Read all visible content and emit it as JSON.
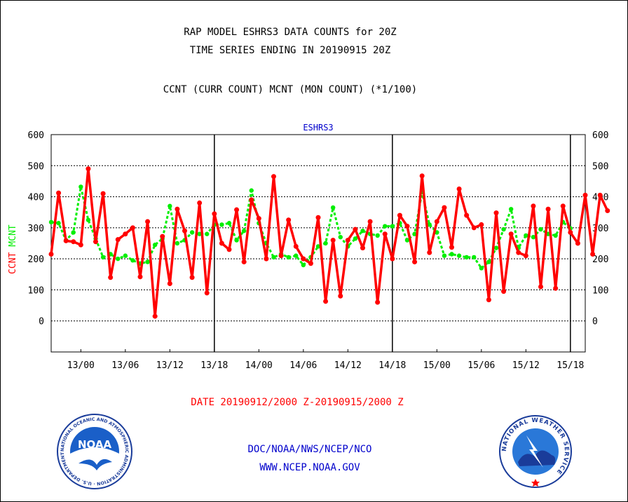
{
  "header": {
    "title_line1": "RAP MODEL ESHRS3 DATA COUNTS for 20Z",
    "title_line2": "TIME SERIES ENDING IN 20190915 20Z",
    "subtitle": "CCNT (CURR COUNT) MCNT (MON COUNT) (*1/100)"
  },
  "footer": {
    "date_range": "DATE 20190912/2000 Z-20190915/2000 Z",
    "credit_line1": "DOC/NOAA/NWS/NCEP/NCO",
    "credit_line2": "WWW.NCEP.NOAA.GOV"
  },
  "logos": {
    "noaa": {
      "center_text": "NOAA",
      "ring_text": "NATIONAL OCEANIC AND ATMOSPHERIC ADMINISTRATION · U.S. DEPARTMENT OF COMMERCE"
    },
    "nws": {
      "ring_text": "NATIONAL WEATHER SERVICE"
    }
  },
  "colors": {
    "ccnt": "#ff0000",
    "mcnt": "#00ee00",
    "title": "#000000",
    "series_label": "#0000cc"
  },
  "chart_data": {
    "type": "line",
    "title": "ESHRS3",
    "ylabel_ccnt": "CCNT",
    "ylabel_mcnt": "MCNT",
    "ylim": [
      -100,
      600
    ],
    "yticks": [
      600,
      500,
      400,
      300,
      200,
      100,
      0
    ],
    "x_unit": "hours since 20190912/2000 Z",
    "xlim": [
      0,
      72
    ],
    "xticks": [
      {
        "label": "13/00",
        "x": 4
      },
      {
        "label": "13/06",
        "x": 10
      },
      {
        "label": "13/12",
        "x": 16
      },
      {
        "label": "13/18",
        "x": 22
      },
      {
        "label": "14/00",
        "x": 28
      },
      {
        "label": "14/06",
        "x": 34
      },
      {
        "label": "14/12",
        "x": 40
      },
      {
        "label": "14/18",
        "x": 46
      },
      {
        "label": "15/00",
        "x": 52
      },
      {
        "label": "15/06",
        "x": 58
      },
      {
        "label": "15/12",
        "x": 64
      },
      {
        "label": "15/18",
        "x": 70
      }
    ],
    "day_separators": [
      22,
      46,
      70
    ],
    "grid": true,
    "series": [
      {
        "name": "CCNT",
        "color": "#ff0000",
        "values": [
          215,
          412,
          258,
          255,
          245,
          490,
          255,
          410,
          140,
          262,
          280,
          300,
          142,
          320,
          15,
          272,
          120,
          360,
          290,
          140,
          380,
          90,
          345,
          250,
          230,
          358,
          190,
          390,
          330,
          200,
          465,
          210,
          325,
          240,
          200,
          185,
          333,
          63,
          260,
          80,
          260,
          295,
          235,
          320,
          60,
          280,
          200,
          340,
          305,
          190,
          467,
          220,
          320,
          365,
          237,
          425,
          340,
          300,
          310,
          68,
          348,
          95,
          280,
          220,
          210,
          370,
          110,
          360,
          105,
          370,
          285,
          250,
          405,
          215,
          405,
          355
        ],
        "x_spacing_hours": 1
      },
      {
        "name": "MCNT",
        "color": "#00ee00",
        "values": [
          318,
          315,
          260,
          285,
          432,
          325,
          265,
          205,
          215,
          200,
          210,
          195,
          185,
          190,
          245,
          265,
          370,
          250,
          260,
          285,
          280,
          280,
          310,
          310,
          315,
          260,
          290,
          420,
          315,
          250,
          205,
          215,
          205,
          210,
          180,
          205,
          240,
          250,
          365,
          270,
          240,
          265,
          290,
          280,
          275,
          305,
          305,
          315,
          260,
          280,
          415,
          310,
          285,
          210,
          215,
          210,
          205,
          205,
          170,
          190,
          235,
          295,
          360,
          235,
          275,
          270,
          295,
          280,
          275,
          318,
          298
        ],
        "x_spacing_hours": 1,
        "x_offset_hours": 0
      }
    ]
  }
}
